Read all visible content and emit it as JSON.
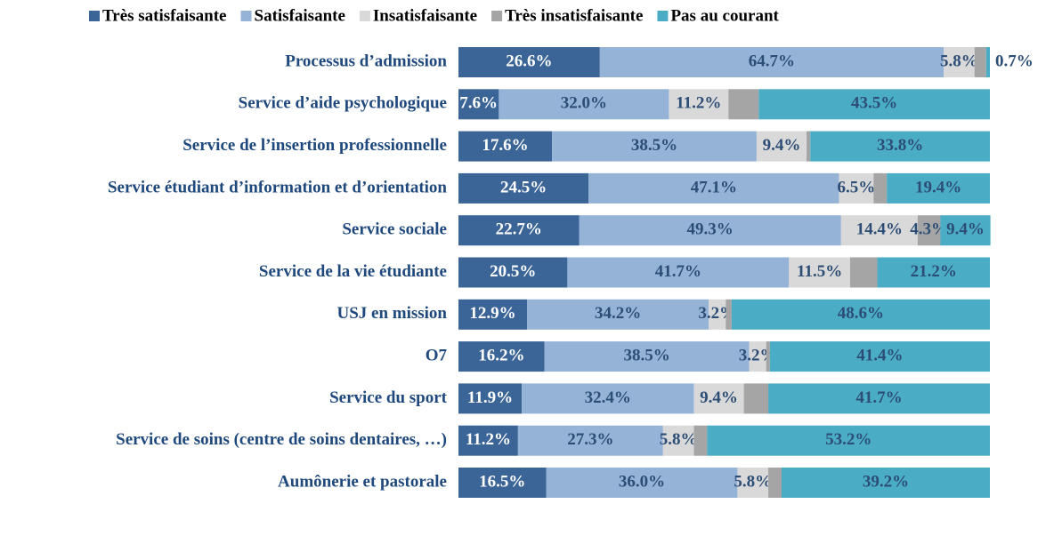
{
  "chart_data": {
    "type": "stacked_bar_horizontal",
    "categories": [
      "Processus d’admission",
      "Service d’aide psychologique",
      "Service de l’insertion professionnelle",
      "Service étudiant d’information et d’orientation",
      "Service sociale",
      "Service de la vie étudiante",
      "USJ en mission",
      "O7",
      "Service du sport",
      "Service de soins (centre de soins dentaires, …)",
      "Aumônerie et pastorale"
    ],
    "series": [
      {
        "name": "Très satisfaisante",
        "color": "#3b6497",
        "values": [
          26.6,
          7.6,
          17.6,
          24.5,
          22.7,
          20.5,
          12.9,
          16.2,
          11.9,
          11.2,
          16.5
        ],
        "value_labels": [
          "26.6%",
          "7.6%",
          "17.6%",
          "24.5%",
          "22.7%",
          "20.5%",
          "12.9%",
          "16.2%",
          "11.9%",
          "11.2%",
          "16.5%"
        ]
      },
      {
        "name": "Satisfaisante",
        "color": "#95b3d7",
        "values": [
          64.7,
          32.0,
          38.5,
          47.1,
          49.3,
          41.7,
          34.2,
          38.5,
          32.4,
          27.3,
          36.0
        ],
        "value_labels": [
          "64.7%",
          "32.0%",
          "38.5%",
          "47.1%",
          "49.3%",
          "41.7%",
          "34.2%",
          "38.5%",
          "32.4%",
          "27.3%",
          "36.0%"
        ]
      },
      {
        "name": "Insatisfaisante",
        "color": "#d9d9d9",
        "values": [
          5.8,
          11.2,
          9.4,
          6.5,
          14.4,
          11.5,
          3.2,
          3.2,
          9.4,
          5.8,
          5.8
        ],
        "value_labels": [
          "5.8%",
          "11.2%",
          "9.4%",
          "6.5%",
          "14.4%",
          "11.5%",
          "3.2%",
          "3.2%",
          "9.4%",
          "5.8%",
          "5.8%"
        ]
      },
      {
        "name": "Très insatisfaisante",
        "color": "#a5a5a5",
        "values": [
          2.2,
          5.7,
          0.7,
          2.5,
          4.3,
          5.1,
          1.1,
          0.7,
          4.6,
          2.5,
          2.5
        ],
        "value_labels": [
          null,
          null,
          null,
          null,
          "4.3%",
          null,
          null,
          null,
          null,
          null,
          null
        ]
      },
      {
        "name": "Pas au courant",
        "color": "#4bacc6",
        "values": [
          0.7,
          43.5,
          33.8,
          19.4,
          9.4,
          21.2,
          48.6,
          41.4,
          41.7,
          53.2,
          39.2
        ],
        "value_labels": [
          "0.7%",
          "43.5%",
          "33.8%",
          "19.4%",
          "9.4%",
          "21.2%",
          "48.6%",
          "41.4%",
          "41.7%",
          "53.2%",
          "39.2%"
        ]
      }
    ],
    "legend": "top"
  }
}
